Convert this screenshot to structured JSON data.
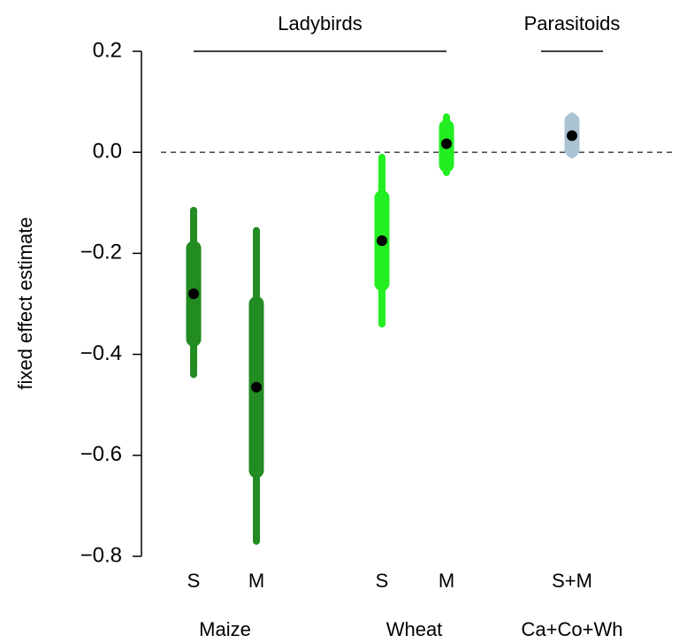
{
  "chart_data": {
    "type": "interval",
    "y_label": "fixed effect estimate",
    "ylim": [
      -0.8,
      0.2
    ],
    "yticks": [
      0.2,
      {
        "value": 0,
        "label": "0.0"
      },
      {
        "value": -0.2,
        "label": "−0.2"
      },
      {
        "value": -0.4,
        "label": "−0.4"
      },
      {
        "value": -0.6,
        "label": "−0.6"
      },
      {
        "value": -0.8,
        "label": "−0.8"
      }
    ],
    "reference_line": 0,
    "panels": [
      {
        "label": "Ladybirds",
        "groups": [
          {
            "label": "Maize",
            "points": [
              {
                "category": "S",
                "color": "#228b22",
                "estimate": -0.28,
                "inner": [
                  -0.37,
                  -0.19
                ],
                "outer": [
                  -0.44,
                  -0.115
                ]
              },
              {
                "category": "M",
                "color": "#228b22",
                "estimate": -0.465,
                "inner": [
                  -0.63,
                  -0.3
                ],
                "outer": [
                  -0.77,
                  -0.155
                ]
              }
            ]
          },
          {
            "label": "Wheat",
            "points": [
              {
                "category": "S",
                "color": "#22ee22",
                "estimate": -0.175,
                "inner": [
                  -0.26,
                  -0.09
                ],
                "outer": [
                  -0.34,
                  -0.01
                ]
              },
              {
                "category": "M",
                "color": "#22ee22",
                "estimate": 0.017,
                "inner": [
                  -0.025,
                  0.05
                ],
                "outer": [
                  -0.04,
                  0.07
                ]
              }
            ]
          }
        ]
      },
      {
        "label": "Parasitoids",
        "groups": [
          {
            "label": "Ca+Co+Wh",
            "points": [
              {
                "category": "S+M",
                "color": "#a9c3d3",
                "estimate": 0.033,
                "inner": [
                  0.005,
                  0.062
                ],
                "outer": [
                  -0.005,
                  0.072
                ]
              }
            ]
          }
        ]
      }
    ]
  }
}
